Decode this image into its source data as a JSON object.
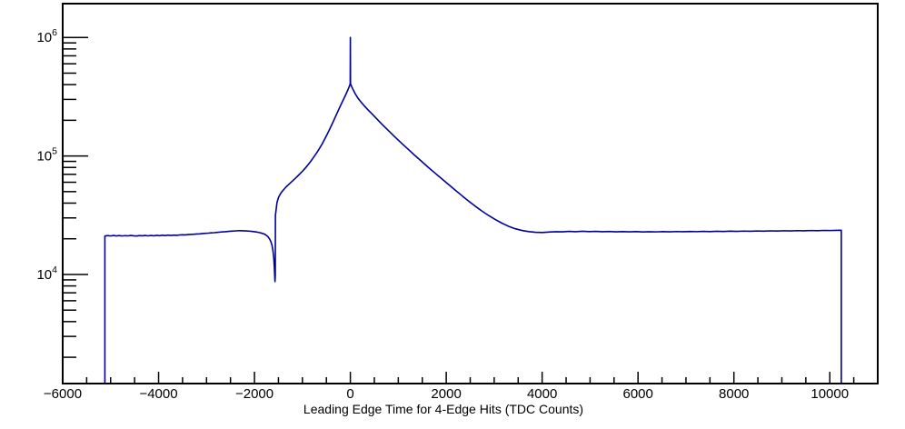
{
  "chart_data": {
    "type": "line",
    "subtype": "histogram-log-y",
    "title": "",
    "xlabel": "Leading Edge Time for 4-Edge Hits (TDC Counts)",
    "ylabel": "",
    "x_range": [
      -6000,
      11000
    ],
    "y_range": [
      1200,
      1930000
    ],
    "y_scale": "log",
    "grid": false,
    "legend": "none",
    "line_color": "#000099",
    "axis_color": "#000000",
    "background_color": "#ffffff",
    "x_ticks": [
      {
        "v": -6000,
        "label": "−6000"
      },
      {
        "v": -4000,
        "label": "−4000"
      },
      {
        "v": -2000,
        "label": "−2000"
      },
      {
        "v": 0,
        "label": "0"
      },
      {
        "v": 2000,
        "label": "2000"
      },
      {
        "v": 4000,
        "label": "4000"
      },
      {
        "v": 6000,
        "label": "6000"
      },
      {
        "v": 8000,
        "label": "8000"
      },
      {
        "v": 10000,
        "label": "10000"
      }
    ],
    "x_minor_tick_step": 500,
    "y_ticks": {
      "base": "10",
      "exponents": [
        4,
        5,
        6
      ]
    },
    "y_minor_decades": [
      3,
      4,
      5
    ],
    "features": {
      "left_plateau_level": 21200,
      "pre_dip_bump_peak": [
        -2350,
        23400
      ],
      "dip_minimum": [
        -1572,
        8700
      ],
      "main_peak": [
        0,
        410000
      ],
      "spike_at_zero": 1000000,
      "right_plateau_level": 23100,
      "data_x_min": -5120,
      "data_x_max": 10240
    },
    "points": [
      [
        -6000,
        1200
      ],
      [
        -5120,
        1200
      ],
      [
        -5120,
        21100
      ],
      [
        -5060,
        21300
      ],
      [
        -5000,
        21120
      ],
      [
        -4940,
        21320
      ],
      [
        -4880,
        21150
      ],
      [
        -4820,
        21280
      ],
      [
        -4760,
        21120
      ],
      [
        -4700,
        21260
      ],
      [
        -4640,
        21160
      ],
      [
        -4580,
        21330
      ],
      [
        -4520,
        21180
      ],
      [
        -4460,
        21100
      ],
      [
        -4400,
        21300
      ],
      [
        -4340,
        21180
      ],
      [
        -4280,
        21340
      ],
      [
        -4220,
        21170
      ],
      [
        -4160,
        21320
      ],
      [
        -4100,
        21200
      ],
      [
        -4040,
        21380
      ],
      [
        -3980,
        21240
      ],
      [
        -3920,
        21420
      ],
      [
        -3860,
        21280
      ],
      [
        -3800,
        21460
      ],
      [
        -3740,
        21330
      ],
      [
        -3680,
        21480
      ],
      [
        -3620,
        21380
      ],
      [
        -3560,
        21540
      ],
      [
        -3500,
        21600
      ],
      [
        -3440,
        21560
      ],
      [
        -3380,
        21700
      ],
      [
        -3320,
        21760
      ],
      [
        -3260,
        21840
      ],
      [
        -3200,
        21960
      ],
      [
        -3140,
        22020
      ],
      [
        -3080,
        22140
      ],
      [
        -3020,
        22240
      ],
      [
        -2960,
        22320
      ],
      [
        -2900,
        22440
      ],
      [
        -2840,
        22520
      ],
      [
        -2780,
        22640
      ],
      [
        -2720,
        22760
      ],
      [
        -2660,
        22880
      ],
      [
        -2600,
        22960
      ],
      [
        -2540,
        23080
      ],
      [
        -2480,
        23180
      ],
      [
        -2420,
        23280
      ],
      [
        -2360,
        23380
      ],
      [
        -2300,
        23400
      ],
      [
        -2240,
        23360
      ],
      [
        -2180,
        23300
      ],
      [
        -2120,
        23220
      ],
      [
        -2060,
        23100
      ],
      [
        -2000,
        22950
      ],
      [
        -1950,
        22780
      ],
      [
        -1900,
        22560
      ],
      [
        -1850,
        22300
      ],
      [
        -1800,
        21980
      ],
      [
        -1760,
        21520
      ],
      [
        -1720,
        20850
      ],
      [
        -1690,
        20050
      ],
      [
        -1660,
        19050
      ],
      [
        -1635,
        17700
      ],
      [
        -1615,
        15900
      ],
      [
        -1598,
        13900
      ],
      [
        -1586,
        11600
      ],
      [
        -1577,
        9600
      ],
      [
        -1572,
        8700
      ],
      [
        -1566,
        9800
      ],
      [
        -1563,
        31500
      ],
      [
        -1530,
        40500
      ],
      [
        -1500,
        44500
      ],
      [
        -1470,
        47000
      ],
      [
        -1430,
        49800
      ],
      [
        -1390,
        52000
      ],
      [
        -1340,
        54800
      ],
      [
        -1290,
        57200
      ],
      [
        -1240,
        59800
      ],
      [
        -1190,
        62400
      ],
      [
        -1140,
        65200
      ],
      [
        -1090,
        68200
      ],
      [
        -1040,
        71500
      ],
      [
        -990,
        75000
      ],
      [
        -940,
        79000
      ],
      [
        -890,
        83500
      ],
      [
        -840,
        88500
      ],
      [
        -790,
        94500
      ],
      [
        -740,
        101000
      ],
      [
        -690,
        108000
      ],
      [
        -640,
        116500
      ],
      [
        -590,
        126000
      ],
      [
        -540,
        137500
      ],
      [
        -490,
        150500
      ],
      [
        -440,
        165500
      ],
      [
        -390,
        182500
      ],
      [
        -340,
        202000
      ],
      [
        -290,
        224000
      ],
      [
        -240,
        248000
      ],
      [
        -190,
        274000
      ],
      [
        -150,
        296000
      ],
      [
        -110,
        320000
      ],
      [
        -75,
        344000
      ],
      [
        -45,
        366000
      ],
      [
        -25,
        384000
      ],
      [
        -10,
        398000
      ],
      [
        -3,
        408000
      ],
      [
        0,
        1000000
      ],
      [
        3,
        406000
      ],
      [
        12,
        398000
      ],
      [
        30,
        383000
      ],
      [
        60,
        361000
      ],
      [
        100,
        336000
      ],
      [
        150,
        311000
      ],
      [
        210,
        289000
      ],
      [
        280,
        268000
      ],
      [
        360,
        247000
      ],
      [
        450,
        227000
      ],
      [
        550,
        206000
      ],
      [
        650,
        187000
      ],
      [
        780,
        166000
      ],
      [
        920,
        146000
      ],
      [
        1060,
        129000
      ],
      [
        1200,
        114500
      ],
      [
        1340,
        101500
      ],
      [
        1480,
        90500
      ],
      [
        1620,
        80500
      ],
      [
        1760,
        72000
      ],
      [
        1900,
        64500
      ],
      [
        2040,
        57800
      ],
      [
        2180,
        51800
      ],
      [
        2320,
        46500
      ],
      [
        2460,
        41800
      ],
      [
        2600,
        37800
      ],
      [
        2740,
        34400
      ],
      [
        2880,
        31500
      ],
      [
        3020,
        29100
      ],
      [
        3160,
        27100
      ],
      [
        3300,
        25500
      ],
      [
        3440,
        24300
      ],
      [
        3580,
        23500
      ],
      [
        3720,
        23000
      ],
      [
        3860,
        22700
      ],
      [
        4000,
        22600
      ],
      [
        4140,
        22800
      ],
      [
        4280,
        22950
      ],
      [
        4420,
        22900
      ],
      [
        4560,
        23100
      ],
      [
        4700,
        22950
      ],
      [
        4840,
        23150
      ],
      [
        4980,
        23000
      ],
      [
        5120,
        23100
      ],
      [
        5260,
        22950
      ],
      [
        5400,
        23050
      ],
      [
        5540,
        22900
      ],
      [
        5680,
        23000
      ],
      [
        5820,
        22880
      ],
      [
        5960,
        22980
      ],
      [
        6100,
        22860
      ],
      [
        6240,
        22960
      ],
      [
        6380,
        22870
      ],
      [
        6520,
        22990
      ],
      [
        6660,
        22900
      ],
      [
        6800,
        23020
      ],
      [
        6940,
        22930
      ],
      [
        7080,
        23060
      ],
      [
        7220,
        22970
      ],
      [
        7360,
        23090
      ],
      [
        7500,
        23010
      ],
      [
        7640,
        23130
      ],
      [
        7780,
        23060
      ],
      [
        7920,
        23180
      ],
      [
        8060,
        23100
      ],
      [
        8200,
        23230
      ],
      [
        8340,
        23150
      ],
      [
        8480,
        23280
      ],
      [
        8620,
        23210
      ],
      [
        8760,
        23330
      ],
      [
        8900,
        23260
      ],
      [
        9040,
        23380
      ],
      [
        9180,
        23310
      ],
      [
        9320,
        23430
      ],
      [
        9460,
        23360
      ],
      [
        9600,
        23480
      ],
      [
        9740,
        23420
      ],
      [
        9880,
        23530
      ],
      [
        10020,
        23480
      ],
      [
        10120,
        23560
      ],
      [
        10240,
        23600
      ],
      [
        10240,
        1200
      ],
      [
        11000,
        1200
      ]
    ]
  }
}
